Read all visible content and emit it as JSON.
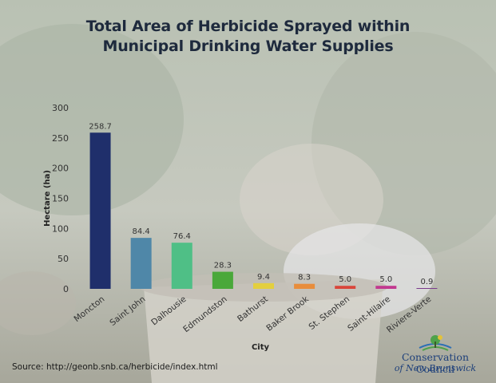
{
  "title_lines": [
    "Total Area of Herbicide Sprayed within",
    "Municipal Drinking Water Supplies"
  ],
  "source": "Source: http://geonb.snb.ca/herbicide/index.html",
  "logo": {
    "line1": "Conservation Council",
    "line2": "of New Brunswick"
  },
  "chart_data": {
    "type": "bar",
    "title": "Total Area of Herbicide Sprayed within Municipal Drinking Water Supplies",
    "xlabel": "City",
    "ylabel": "Hectare (ha)",
    "ylim": [
      0,
      300
    ],
    "yticks": [
      "0",
      "50",
      "100",
      "150",
      "200",
      "250",
      "300"
    ],
    "grid": false,
    "categories": [
      "Moncton",
      "Saint John",
      "Dalhousie",
      "Edmundston",
      "Bathurst",
      "Baker Brook",
      "St. Stephen",
      "Saint-Hilaire",
      "Riviere-Verte"
    ],
    "values": [
      258.7,
      84.4,
      76.4,
      28.3,
      9.4,
      8.3,
      5.0,
      5.0,
      0.9
    ],
    "value_labels": [
      "258.7",
      "84.4",
      "76.4",
      "28.3",
      "9.4",
      "8.3",
      "5.0",
      "5.0",
      "0.9"
    ],
    "colors": [
      "#1f2f6b",
      "#4f87a8",
      "#4fbf86",
      "#4aa83a",
      "#e3cf3f",
      "#e88d3c",
      "#d9453a",
      "#c2388f",
      "#7a3a8c"
    ]
  }
}
